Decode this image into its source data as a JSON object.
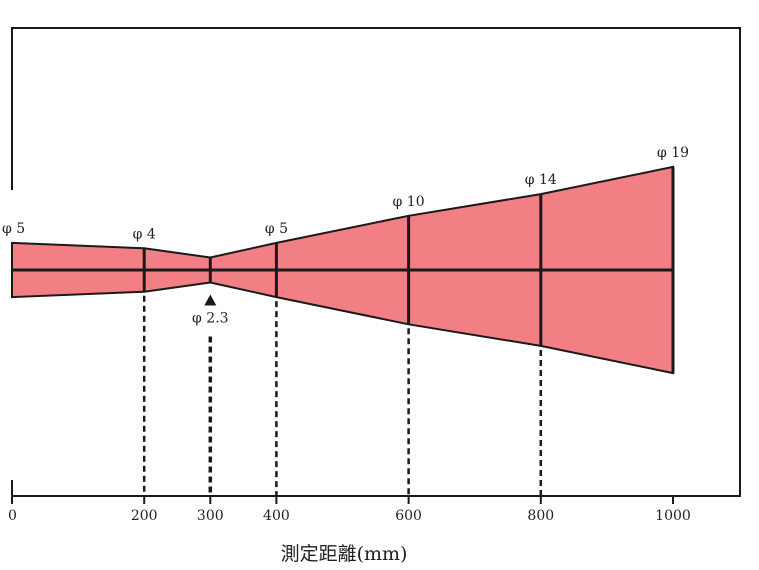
{
  "chart_data": {
    "type": "area",
    "title": "",
    "xlabel": "測定距離(mm)",
    "ylabel": "",
    "colors": {
      "beam_fill": "#f27f84",
      "line": "#1a1a1a"
    },
    "x_ticks": [
      "0",
      "200",
      "300",
      "400",
      "600",
      "800",
      "1000"
    ],
    "x_range": [
      0,
      1000
    ],
    "diameter_range": [
      -19,
      19
    ],
    "min_marker_icon": "triangle-up-icon",
    "points": [
      {
        "x": 0,
        "diameter": 5,
        "label": "φ 5",
        "label_position": "above"
      },
      {
        "x": 200,
        "diameter": 4,
        "label": "φ 4",
        "label_position": "above"
      },
      {
        "x": 300,
        "diameter": 2.3,
        "label": "φ 2.3",
        "label_position": "below"
      },
      {
        "x": 400,
        "diameter": 5,
        "label": "φ 5",
        "label_position": "above"
      },
      {
        "x": 600,
        "diameter": 10,
        "label": "φ 10",
        "label_position": "above"
      },
      {
        "x": 800,
        "diameter": 14,
        "label": "φ 14",
        "label_position": "above"
      },
      {
        "x": 1000,
        "diameter": 19,
        "label": "φ 19",
        "label_position": "above"
      }
    ]
  }
}
